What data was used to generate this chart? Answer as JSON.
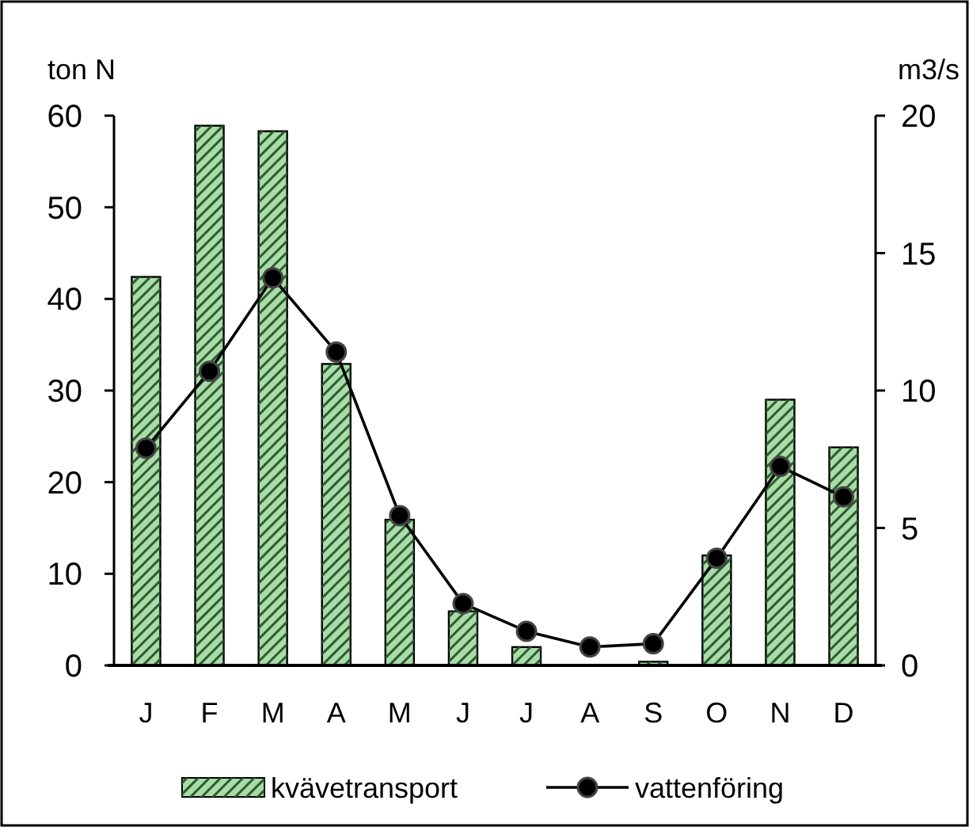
{
  "chart_data": {
    "type": "bar",
    "categories": [
      "J",
      "F",
      "M",
      "A",
      "M",
      "J",
      "J",
      "A",
      "S",
      "O",
      "N",
      "D"
    ],
    "ylabel": "ton N",
    "y2label": "m3/s",
    "ylim": [
      0,
      60
    ],
    "yticks": [
      0,
      10,
      20,
      30,
      40,
      50,
      60
    ],
    "y2lim": [
      0,
      20
    ],
    "y2ticks": [
      0,
      5,
      10,
      15,
      20
    ],
    "legend": "bottom",
    "marker": "circle",
    "series": [
      {
        "name": "kvävetransport",
        "color": "#a8dca8",
        "values": [
          42.4,
          58.9,
          58.3,
          32.9,
          15.9,
          5.9,
          2.0,
          null,
          0.4,
          12.0,
          29.0,
          23.8
        ]
      },
      {
        "name": "vattenföring",
        "type": "line",
        "axis": "y2",
        "color": "#000000",
        "values": [
          7.9,
          10.7,
          14.1,
          11.4,
          5.45,
          2.25,
          1.24,
          0.67,
          0.79,
          3.9,
          7.24,
          6.13
        ]
      }
    ]
  }
}
